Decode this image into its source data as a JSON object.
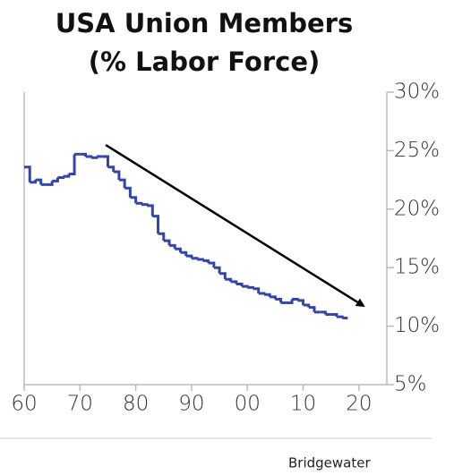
{
  "chart_data": {
    "type": "line",
    "title": "USA Union Members",
    "subtitle": "(% Labor Force)",
    "source": "Bridgewater",
    "x": [
      1960,
      1961,
      1962,
      1963,
      1964,
      1965,
      1966,
      1967,
      1968,
      1969,
      1970,
      1971,
      1972,
      1973,
      1974,
      1975,
      1976,
      1977,
      1978,
      1979,
      1980,
      1981,
      1982,
      1983,
      1984,
      1985,
      1986,
      1987,
      1988,
      1989,
      1990,
      1991,
      1992,
      1993,
      1994,
      1995,
      1996,
      1997,
      1998,
      1999,
      2000,
      2001,
      2002,
      2003,
      2004,
      2005,
      2006,
      2007,
      2008,
      2009,
      2010,
      2011,
      2012,
      2013,
      2014,
      2015,
      2016,
      2017
    ],
    "series": [
      {
        "name": "Union members",
        "color": "#3346a8",
        "values": [
          23.6,
          22.3,
          22.5,
          22.1,
          22.1,
          22.4,
          22.7,
          22.8,
          23.0,
          24.7,
          24.7,
          24.5,
          24.4,
          24.5,
          24.5,
          23.6,
          23.2,
          22.5,
          21.8,
          21.0,
          20.5,
          20.4,
          20.3,
          19.4,
          17.9,
          17.3,
          16.9,
          16.6,
          16.3,
          16.0,
          15.8,
          15.7,
          15.6,
          15.4,
          15.0,
          14.5,
          14.0,
          13.8,
          13.6,
          13.4,
          13.3,
          13.2,
          12.8,
          12.7,
          12.5,
          12.3,
          12.0,
          12.0,
          12.3,
          12.2,
          11.8,
          11.6,
          11.2,
          11.2,
          11.0,
          11.0,
          10.8,
          10.7
        ]
      }
    ],
    "xlim": [
      1960,
      2025
    ],
    "xticks": [
      {
        "value": 1960,
        "label": "60"
      },
      {
        "value": 1970,
        "label": "70"
      },
      {
        "value": 1980,
        "label": "80"
      },
      {
        "value": 1990,
        "label": "90"
      },
      {
        "value": 2000,
        "label": "00"
      },
      {
        "value": 2010,
        "label": "10"
      },
      {
        "value": 2020,
        "label": "20"
      }
    ],
    "ylim": [
      5,
      30
    ],
    "yticks": [
      {
        "value": 5,
        "label": "5%"
      },
      {
        "value": 10,
        "label": "10%"
      },
      {
        "value": 15,
        "label": "15%"
      },
      {
        "value": 20,
        "label": "20%"
      },
      {
        "value": 25,
        "label": "25%"
      },
      {
        "value": 30,
        "label": "30%"
      }
    ],
    "grid": false
  }
}
